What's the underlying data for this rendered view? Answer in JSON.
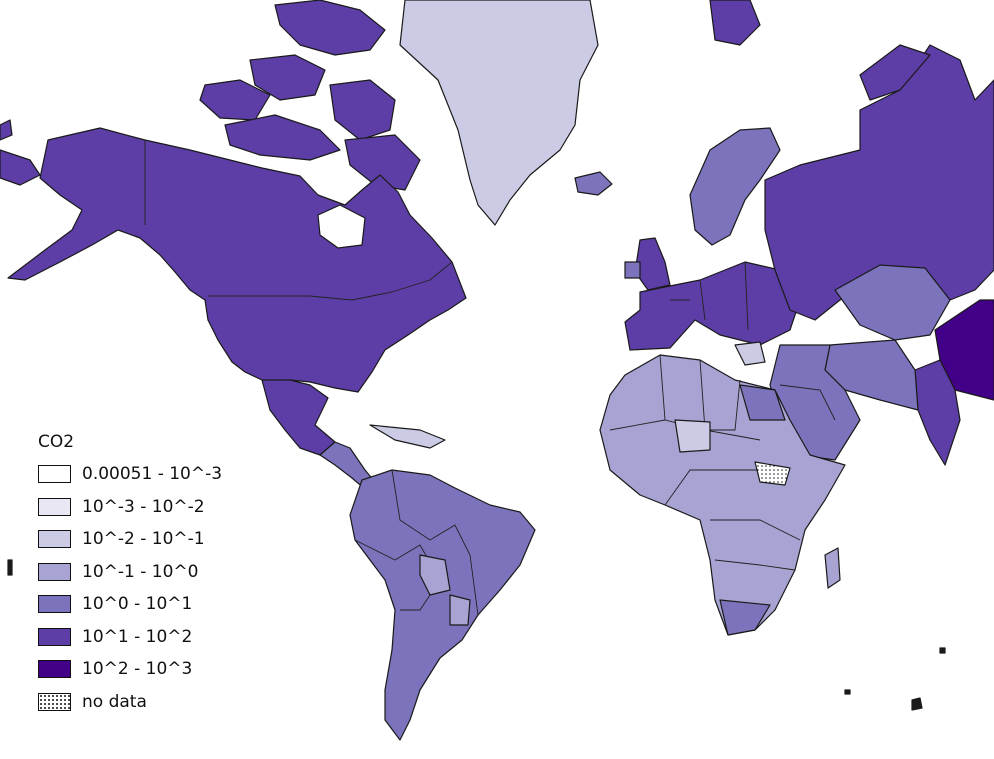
{
  "legend": {
    "title": "CO2",
    "classes": [
      {
        "label": "0.00051 - 10^-3",
        "color": "#ffffff"
      },
      {
        "label": "10^-3 - 10^-2",
        "color": "#e9e7f3"
      },
      {
        "label": "10^-2 - 10^-1",
        "color": "#cccbe6"
      },
      {
        "label": "10^-1 - 10^0",
        "color": "#a7a3d2"
      },
      {
        "label": "10^0 - 10^1",
        "color": "#7b74bd"
      },
      {
        "label": "10^1 - 10^2",
        "color": "#5d3ea6"
      },
      {
        "label": "10^2 - 10^3",
        "color": "#420088"
      },
      {
        "label": "no data",
        "color": "pattern"
      }
    ]
  },
  "colors": {
    "water": "#ffffff",
    "outline": "#1a1a1a"
  }
}
